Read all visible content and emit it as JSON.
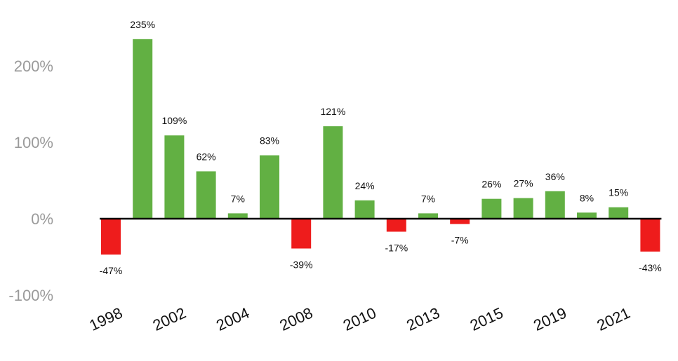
{
  "chart_data": {
    "type": "bar",
    "title": "",
    "xlabel": "",
    "ylabel": "",
    "ylim": [
      -100,
      250
    ],
    "grid": false,
    "colors": {
      "positive": "#62b043",
      "negative": "#ee1c1c",
      "axis": "#000000"
    },
    "y_ticks": [
      {
        "value": 200,
        "label": "200%"
      },
      {
        "value": 100,
        "label": "100%"
      },
      {
        "value": 0,
        "label": "0%"
      },
      {
        "value": -100,
        "label": "-100%"
      }
    ],
    "values": [
      -47,
      235,
      109,
      62,
      7,
      83,
      -39,
      121,
      24,
      -17,
      7,
      -7,
      26,
      27,
      36,
      8,
      15,
      -43
    ],
    "value_labels": [
      "-47%",
      "235%",
      "109%",
      "62%",
      "7%",
      "83%",
      "-39%",
      "121%",
      "24%",
      "-17%",
      "7%",
      "-7%",
      "26%",
      "27%",
      "36%",
      "8%",
      "15%",
      "-43%"
    ],
    "x_tick_labels": [
      {
        "bar_index": 0,
        "label": "1998"
      },
      {
        "bar_index": 2,
        "label": "2002"
      },
      {
        "bar_index": 4,
        "label": "2004"
      },
      {
        "bar_index": 6,
        "label": "2008"
      },
      {
        "bar_index": 8,
        "label": "2010"
      },
      {
        "bar_index": 10,
        "label": "2013"
      },
      {
        "bar_index": 12,
        "label": "2015"
      },
      {
        "bar_index": 14,
        "label": "2019"
      },
      {
        "bar_index": 16,
        "label": "2021"
      }
    ]
  }
}
